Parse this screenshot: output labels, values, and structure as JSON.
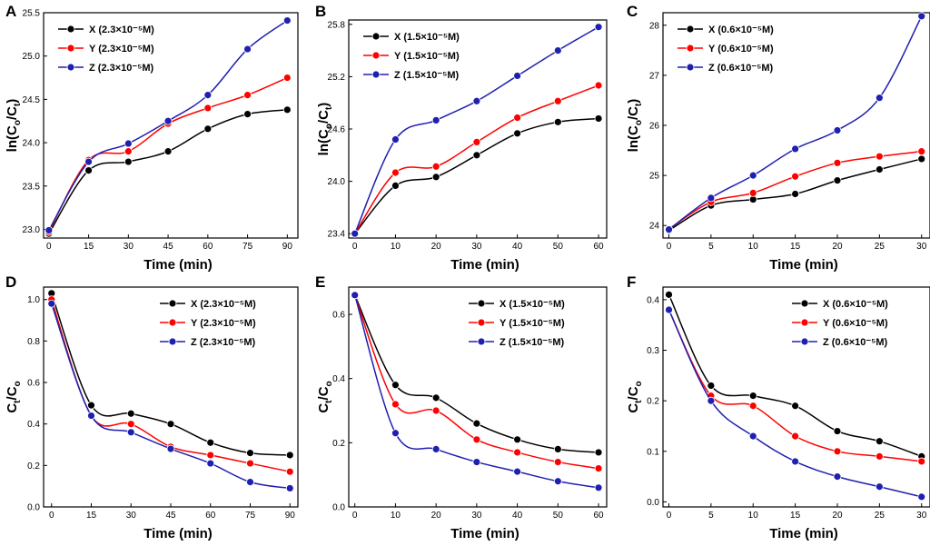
{
  "colors": {
    "X": "#000000",
    "Y": "#ff0000",
    "Z": "#1f1fb0",
    "frame": "#000000"
  },
  "chart_data": [
    {
      "panel": "A",
      "type": "line",
      "xlabel": "Time (min)",
      "ylabel": "ln(C₀/Cₜ)",
      "ylabel_parts": {
        "main": "ln(C",
        "sub1": "o",
        "mid": "/C",
        "sub2": "t",
        "end": ")"
      },
      "xlim": [
        -2,
        94
      ],
      "ylim": [
        22.9,
        25.5
      ],
      "xticks": [
        0,
        15,
        30,
        45,
        60,
        75,
        90
      ],
      "yticks": [
        23.0,
        23.5,
        24.0,
        24.5,
        25.0,
        25.5
      ],
      "ytick_labels": [
        "23.0",
        "23.5",
        "24.0",
        "24.5",
        "25.0",
        "25.5"
      ],
      "legend_position": "top-left",
      "x": [
        0,
        15,
        30,
        45,
        60,
        75,
        90
      ],
      "series": [
        {
          "name": "X (2.3×10⁻⁵M)",
          "key": "X",
          "values": [
            22.95,
            23.68,
            23.78,
            23.9,
            24.16,
            24.33,
            24.38
          ]
        },
        {
          "name": "Y (2.3×10⁻⁵M)",
          "key": "Y",
          "values": [
            22.97,
            23.8,
            23.9,
            24.22,
            24.4,
            24.55,
            24.75
          ]
        },
        {
          "name": "Z (2.3×10⁻⁵M)",
          "key": "Z",
          "values": [
            22.99,
            23.78,
            23.99,
            24.25,
            24.55,
            25.08,
            25.41
          ]
        }
      ]
    },
    {
      "panel": "B",
      "type": "line",
      "xlabel": "Time (min)",
      "ylabel": "ln(C₀/Cₜ)",
      "ylabel_parts": {
        "main": "ln(C",
        "sub1": "o",
        "mid": "/C",
        "sub2": "t",
        "end": ")"
      },
      "xlim": [
        -1.5,
        62
      ],
      "ylim": [
        23.35,
        25.85
      ],
      "xticks": [
        0,
        10,
        20,
        30,
        40,
        50,
        60
      ],
      "yticks": [
        23.4,
        24.0,
        24.6,
        25.2,
        25.8
      ],
      "ytick_labels": [
        "23.4",
        "24.0",
        "24.6",
        "25.2",
        "25.8"
      ],
      "legend_position": "top-left",
      "x": [
        0,
        10,
        20,
        30,
        40,
        50,
        60
      ],
      "series": [
        {
          "name": "X (1.5×10⁻⁵M)",
          "key": "X",
          "values": [
            23.4,
            23.95,
            24.05,
            24.3,
            24.55,
            24.68,
            24.72
          ]
        },
        {
          "name": "Y (1.5×10⁻⁵M)",
          "key": "Y",
          "values": [
            23.4,
            24.1,
            24.17,
            24.45,
            24.73,
            24.92,
            25.1
          ]
        },
        {
          "name": "Z (1.5×10⁻⁵M)",
          "key": "Z",
          "values": [
            23.4,
            24.48,
            24.7,
            24.92,
            25.21,
            25.5,
            25.77
          ]
        }
      ]
    },
    {
      "panel": "C",
      "type": "line",
      "xlabel": "Time (min)",
      "ylabel": "ln(C₀/Cₜ)",
      "ylabel_parts": {
        "main": "ln(C",
        "sub1": "o",
        "mid": "/C",
        "sub2": "t",
        "end": ")"
      },
      "xlim": [
        -0.7,
        31
      ],
      "ylim": [
        23.75,
        28.25
      ],
      "xticks": [
        0,
        5,
        10,
        15,
        20,
        25,
        30
      ],
      "yticks": [
        24,
        25,
        26,
        27,
        28
      ],
      "ytick_labels": [
        "24",
        "25",
        "26",
        "27",
        "28"
      ],
      "legend_position": "top-left",
      "x": [
        0,
        5,
        10,
        15,
        20,
        25,
        30
      ],
      "series": [
        {
          "name": "X (0.6×10⁻⁵M)",
          "key": "X",
          "values": [
            23.9,
            24.4,
            24.52,
            24.63,
            24.9,
            25.12,
            25.33
          ]
        },
        {
          "name": "Y (0.6×10⁻⁵M)",
          "key": "Y",
          "values": [
            23.93,
            24.47,
            24.65,
            24.98,
            25.25,
            25.38,
            25.48
          ]
        },
        {
          "name": "Z (0.6×10⁻⁵M)",
          "key": "Z",
          "values": [
            23.92,
            24.55,
            25.0,
            25.53,
            25.9,
            26.55,
            28.18
          ]
        }
      ]
    },
    {
      "panel": "D",
      "type": "line",
      "xlabel": "Time (min)",
      "ylabel": "Cₜ/C₀",
      "ylabel_parts": {
        "main": "C",
        "sub1": "t",
        "mid": "/C",
        "sub2": "o",
        "end": ""
      },
      "xlim": [
        -3,
        93
      ],
      "ylim": [
        0.0,
        1.06
      ],
      "xticks": [
        0,
        15,
        30,
        45,
        60,
        75,
        90
      ],
      "yticks": [
        0.0,
        0.2,
        0.4,
        0.6,
        0.8,
        1.0
      ],
      "ytick_labels": [
        "0.0",
        "0.2",
        "0.4",
        "0.6",
        "0.8",
        "1.0"
      ],
      "legend_position": "top-right",
      "x": [
        0,
        15,
        30,
        45,
        60,
        75,
        90
      ],
      "series": [
        {
          "name": "X (2.3×10⁻⁵M)",
          "key": "X",
          "values": [
            1.03,
            0.49,
            0.45,
            0.4,
            0.31,
            0.26,
            0.25
          ]
        },
        {
          "name": "Y (2.3×10⁻⁵M)",
          "key": "Y",
          "values": [
            1.0,
            0.44,
            0.4,
            0.29,
            0.25,
            0.21,
            0.17
          ]
        },
        {
          "name": "Z (2.3×10⁻⁵M)",
          "key": "Z",
          "values": [
            0.98,
            0.44,
            0.36,
            0.28,
            0.21,
            0.12,
            0.09
          ]
        }
      ]
    },
    {
      "panel": "E",
      "type": "line",
      "xlabel": "Time (min)",
      "ylabel": "Cₜ/C₀",
      "ylabel_parts": {
        "main": "C",
        "sub1": "t",
        "mid": "/C",
        "sub2": "o",
        "end": ""
      },
      "xlim": [
        -1.5,
        62
      ],
      "ylim": [
        0.0,
        0.685
      ],
      "xticks": [
        0,
        10,
        20,
        30,
        40,
        50,
        60
      ],
      "yticks": [
        0.0,
        0.2,
        0.4,
        0.6
      ],
      "ytick_labels": [
        "0.0",
        "0.2",
        "0.4",
        "0.6"
      ],
      "legend_position": "top-right",
      "x": [
        0,
        10,
        20,
        30,
        40,
        50,
        60
      ],
      "series": [
        {
          "name": "X (1.5×10⁻⁵M)",
          "key": "X",
          "values": [
            0.66,
            0.38,
            0.34,
            0.26,
            0.21,
            0.18,
            0.17
          ]
        },
        {
          "name": "Y (1.5×10⁻⁵M)",
          "key": "Y",
          "values": [
            0.66,
            0.32,
            0.3,
            0.21,
            0.17,
            0.14,
            0.12
          ]
        },
        {
          "name": "Z (1.5×10⁻⁵M)",
          "key": "Z",
          "values": [
            0.66,
            0.23,
            0.18,
            0.14,
            0.11,
            0.08,
            0.06
          ]
        }
      ]
    },
    {
      "panel": "F",
      "type": "line",
      "xlabel": "Time (min)",
      "ylabel": "Cₜ/C₀",
      "ylabel_parts": {
        "main": "C",
        "sub1": "t",
        "mid": "/C",
        "sub2": "o",
        "end": ""
      },
      "xlim": [
        -0.7,
        31
      ],
      "ylim": [
        -0.01,
        0.425
      ],
      "xticks": [
        0,
        5,
        10,
        15,
        20,
        25,
        30
      ],
      "yticks": [
        0.0,
        0.1,
        0.2,
        0.3,
        0.4
      ],
      "ytick_labels": [
        "0.0",
        "0.1",
        "0.2",
        "0.3",
        "0.4"
      ],
      "legend_position": "top-right",
      "x": [
        0,
        5,
        10,
        15,
        20,
        25,
        30
      ],
      "series": [
        {
          "name": "X (0.6×10⁻⁵M)",
          "key": "X",
          "values": [
            0.41,
            0.23,
            0.21,
            0.19,
            0.14,
            0.12,
            0.09
          ]
        },
        {
          "name": "Y (0.6×10⁻⁵M)",
          "key": "Y",
          "values": [
            0.38,
            0.21,
            0.19,
            0.13,
            0.1,
            0.09,
            0.08
          ]
        },
        {
          "name": "Z (0.6×10⁻⁵M)",
          "key": "Z",
          "values": [
            0.38,
            0.2,
            0.13,
            0.08,
            0.05,
            0.03,
            0.01
          ]
        }
      ]
    }
  ]
}
